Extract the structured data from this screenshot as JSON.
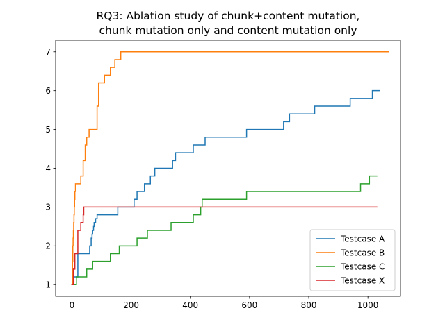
{
  "chart_data": {
    "type": "line",
    "step": true,
    "title_lines": [
      "RQ3: Ablation study of chunk+content mutation,",
      "chunk mutation only and content mutation only"
    ],
    "xlabel": "",
    "ylabel": "",
    "xlim": [
      -55,
      1110
    ],
    "ylim": [
      0.7,
      7.3
    ],
    "xticks": [
      0,
      200,
      400,
      600,
      800,
      1000
    ],
    "yticks": [
      1,
      2,
      3,
      4,
      5,
      6,
      7
    ],
    "grid": false,
    "legend_position": "lower right",
    "series": [
      {
        "name": "Testcase A",
        "color": "#1f77b4",
        "x": [
          0,
          5,
          20,
          60,
          65,
          68,
          70,
          73,
          75,
          80,
          85,
          90,
          155,
          200,
          210,
          220,
          230,
          245,
          265,
          280,
          300,
          340,
          350,
          360,
          410,
          420,
          450,
          590,
          715,
          735,
          820,
          940,
          1015,
          1040
        ],
        "y": [
          1.0,
          1.2,
          1.8,
          2.0,
          2.2,
          2.3,
          2.4,
          2.5,
          2.6,
          2.7,
          2.8,
          2.8,
          3.0,
          3.0,
          3.2,
          3.4,
          3.4,
          3.6,
          3.8,
          4.0,
          4.0,
          4.2,
          4.4,
          4.4,
          4.6,
          4.6,
          4.8,
          5.0,
          5.2,
          5.4,
          5.6,
          5.8,
          6.0,
          6.0
        ]
      },
      {
        "name": "Testcase B",
        "color": "#ff7f0e",
        "x": [
          0,
          2,
          3,
          4,
          5,
          6,
          7,
          8,
          9,
          10,
          12,
          14,
          17,
          20,
          30,
          38,
          45,
          50,
          58,
          65,
          85,
          90,
          95,
          110,
          120,
          130,
          145,
          165,
          175,
          1070
        ],
        "y": [
          1.0,
          1.6,
          2.0,
          2.2,
          2.4,
          2.6,
          2.8,
          3.0,
          3.2,
          3.4,
          3.6,
          3.6,
          3.6,
          3.6,
          3.8,
          4.2,
          4.6,
          4.8,
          5.0,
          5.0,
          5.6,
          6.2,
          6.2,
          6.4,
          6.4,
          6.6,
          6.8,
          7.0,
          7.0,
          7.0
        ]
      },
      {
        "name": "Testcase C",
        "color": "#2ca02c",
        "x": [
          0,
          15,
          50,
          70,
          130,
          160,
          220,
          255,
          335,
          410,
          435,
          440,
          590,
          975,
          1005,
          1030
        ],
        "y": [
          1.0,
          1.2,
          1.4,
          1.6,
          1.8,
          2.0,
          2.2,
          2.4,
          2.6,
          2.8,
          3.0,
          3.2,
          3.4,
          3.6,
          3.8,
          3.8
        ]
      },
      {
        "name": "Testcase X",
        "color": "#d62728",
        "x": [
          0,
          5,
          10,
          20,
          30,
          38,
          40,
          1030
        ],
        "y": [
          1.0,
          1.4,
          1.8,
          2.4,
          2.6,
          2.8,
          3.0,
          3.0
        ]
      }
    ]
  }
}
